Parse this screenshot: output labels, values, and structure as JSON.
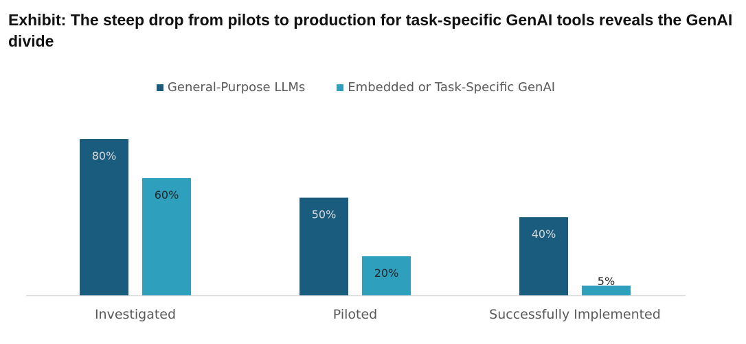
{
  "chart_data": {
    "type": "bar",
    "title": "Exhibit: The steep drop from pilots to production for task-specific GenAI tools reveals the GenAI divide",
    "categories": [
      "Investigated",
      "Piloted",
      "Successfully Implemented"
    ],
    "series": [
      {
        "name": "General-Purpose LLMs",
        "values": [
          80,
          50,
          40
        ],
        "labels": [
          "80%",
          "50%",
          "40%"
        ],
        "color": "#1a5c7e"
      },
      {
        "name": "Embedded or Task-Specific GenAI",
        "values": [
          60,
          20,
          5
        ],
        "labels": [
          "60%",
          "20%",
          "5%"
        ],
        "color": "#2e9fbd"
      }
    ],
    "ylim": [
      0,
      100
    ],
    "grid": false,
    "legend_position": "top-center",
    "value_unit": "%"
  }
}
